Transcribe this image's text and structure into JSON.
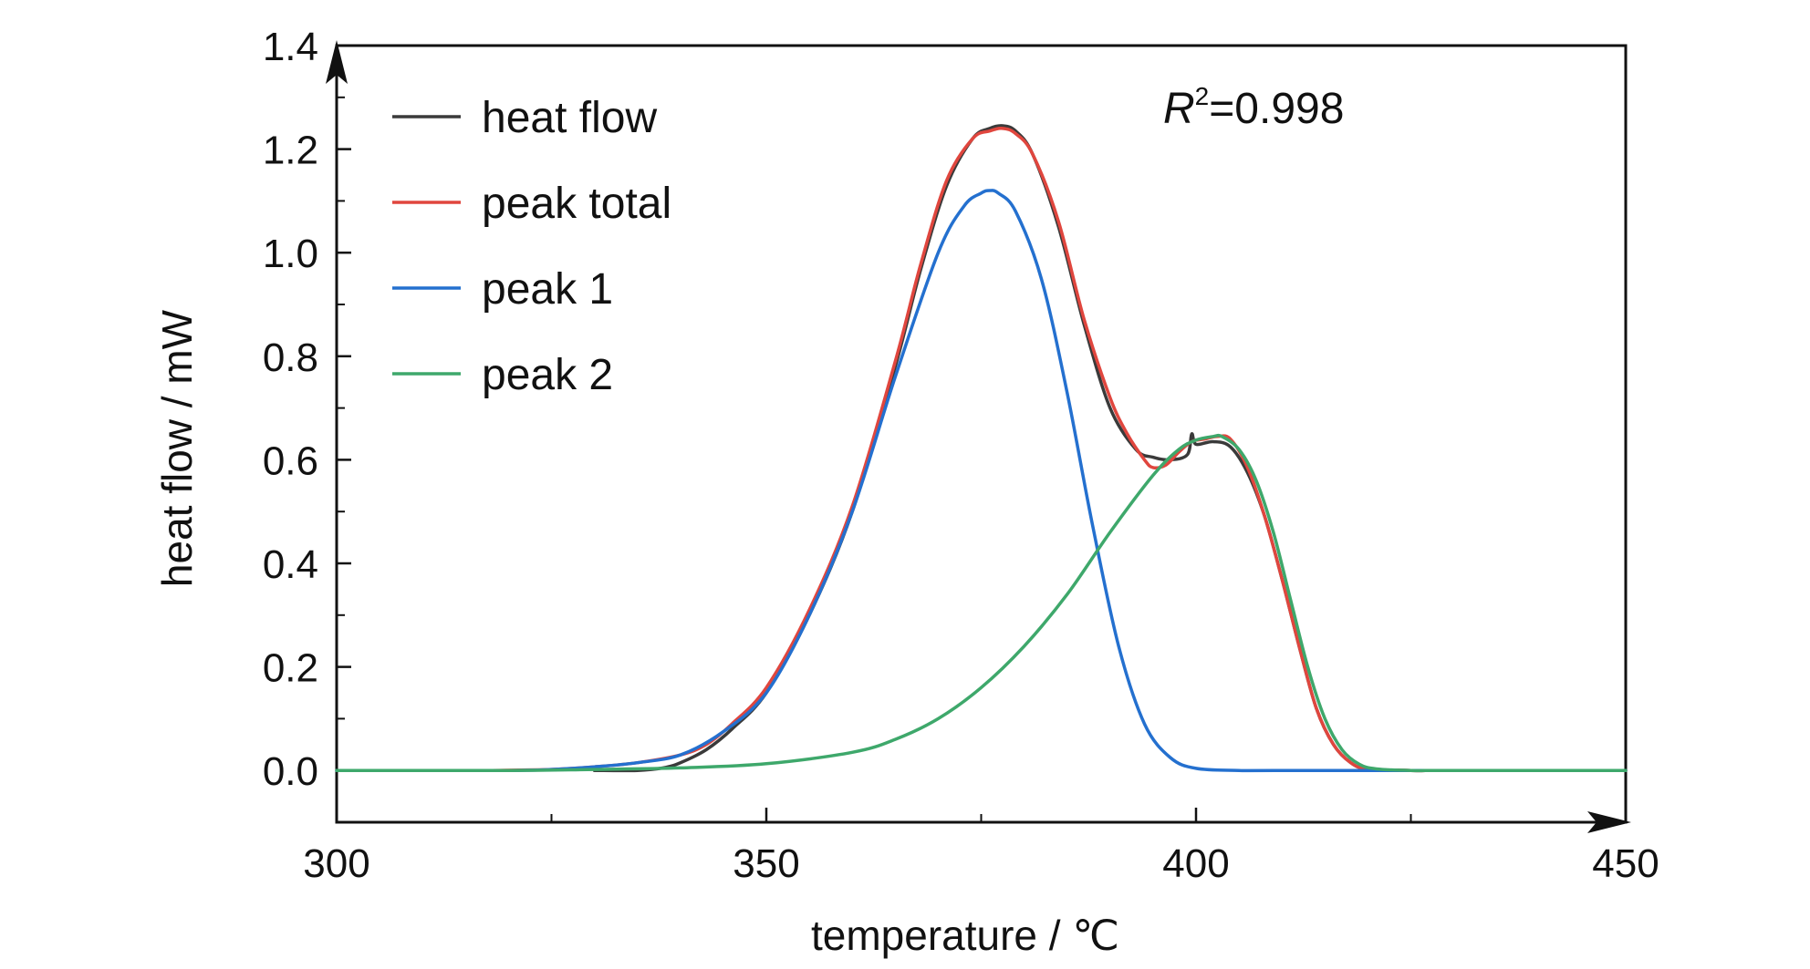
{
  "chart_data": {
    "type": "line",
    "title": "",
    "xlabel": "temperature / ℃",
    "ylabel": "heat flow / mW",
    "xlim": [
      300,
      450
    ],
    "ylim": [
      -0.1,
      1.4
    ],
    "x_ticks": [
      300,
      350,
      400,
      450
    ],
    "y_ticks": [
      0.0,
      0.2,
      0.4,
      0.6,
      0.8,
      1.0,
      1.2,
      1.4
    ],
    "x_tick_labels": [
      "300",
      "350",
      "400",
      "450"
    ],
    "y_tick_labels": [
      "0.0",
      "0.2",
      "0.4",
      "0.6",
      "0.8",
      "1.0",
      "1.2",
      "1.4"
    ],
    "grid": false,
    "legend_position": "top-left",
    "annotation": {
      "symbol": "R",
      "superscript": "2",
      "text": "=0.998"
    },
    "series": [
      {
        "name": "heat flow",
        "color": "#3a3a3a",
        "x": [
          330,
          335,
          338,
          340,
          343,
          346,
          350,
          355,
          360,
          365,
          368,
          371,
          374,
          376,
          377.5,
          379,
          381,
          384,
          387,
          390,
          393,
          395,
          397,
          399,
          399.5,
          400,
          402,
          404,
          406,
          408,
          410,
          412,
          414,
          416,
          418,
          420,
          425,
          430,
          450
        ],
        "y": [
          0.0,
          0.0,
          0.005,
          0.015,
          0.04,
          0.08,
          0.15,
          0.3,
          0.5,
          0.78,
          0.97,
          1.13,
          1.22,
          1.24,
          1.245,
          1.235,
          1.19,
          1.05,
          0.86,
          0.7,
          0.62,
          0.605,
          0.6,
          0.61,
          0.65,
          0.63,
          0.635,
          0.625,
          0.575,
          0.49,
          0.37,
          0.24,
          0.12,
          0.05,
          0.015,
          0.003,
          0.0,
          0.0,
          0.0
        ]
      },
      {
        "name": "peak total",
        "color": "#e0463e",
        "x": [
          318,
          325,
          330,
          335,
          340,
          343,
          346,
          350,
          355,
          360,
          365,
          368,
          371,
          374,
          376,
          377.5,
          379,
          381,
          384,
          387,
          390,
          392,
          394,
          395,
          396.5,
          398,
          399.5,
          401,
          402.5,
          404,
          406,
          408,
          410,
          412,
          414,
          416,
          418,
          420,
          425,
          430,
          450
        ],
        "y": [
          0.0,
          0.002,
          0.007,
          0.015,
          0.03,
          0.05,
          0.09,
          0.16,
          0.31,
          0.51,
          0.79,
          0.98,
          1.14,
          1.22,
          1.235,
          1.24,
          1.23,
          1.19,
          1.06,
          0.87,
          0.72,
          0.65,
          0.6,
          0.585,
          0.59,
          0.615,
          0.635,
          0.64,
          0.645,
          0.64,
          0.585,
          0.49,
          0.37,
          0.24,
          0.12,
          0.05,
          0.015,
          0.003,
          0.0,
          0.0,
          0.0
        ]
      },
      {
        "name": "peak 1",
        "color": "#2470cf",
        "x": [
          300,
          320,
          325,
          330,
          335,
          340,
          345,
          350,
          355,
          360,
          365,
          370,
          373,
          375,
          376,
          377,
          379,
          382,
          385,
          388,
          391,
          394,
          397,
          400,
          405,
          410,
          450
        ],
        "y": [
          0.0,
          0.0,
          0.002,
          0.007,
          0.015,
          0.03,
          0.075,
          0.15,
          0.3,
          0.5,
          0.76,
          1.0,
          1.09,
          1.115,
          1.12,
          1.115,
          1.08,
          0.95,
          0.73,
          0.47,
          0.24,
          0.09,
          0.025,
          0.004,
          0.0,
          0.0,
          0.0
        ]
      },
      {
        "name": "peak 2",
        "color": "#3ea86b",
        "x": [
          300,
          320,
          330,
          340,
          350,
          360,
          365,
          370,
          375,
          380,
          385,
          390,
          395,
          398,
          400,
          402,
          403,
          405,
          407,
          409,
          411,
          413,
          415,
          417,
          419,
          421,
          425,
          430,
          450
        ],
        "y": [
          0.0,
          0.0,
          0.002,
          0.005,
          0.013,
          0.035,
          0.06,
          0.1,
          0.16,
          0.24,
          0.34,
          0.46,
          0.57,
          0.62,
          0.638,
          0.645,
          0.645,
          0.62,
          0.56,
          0.46,
          0.33,
          0.2,
          0.1,
          0.04,
          0.012,
          0.003,
          0.0,
          0.0,
          0.0
        ]
      }
    ]
  }
}
